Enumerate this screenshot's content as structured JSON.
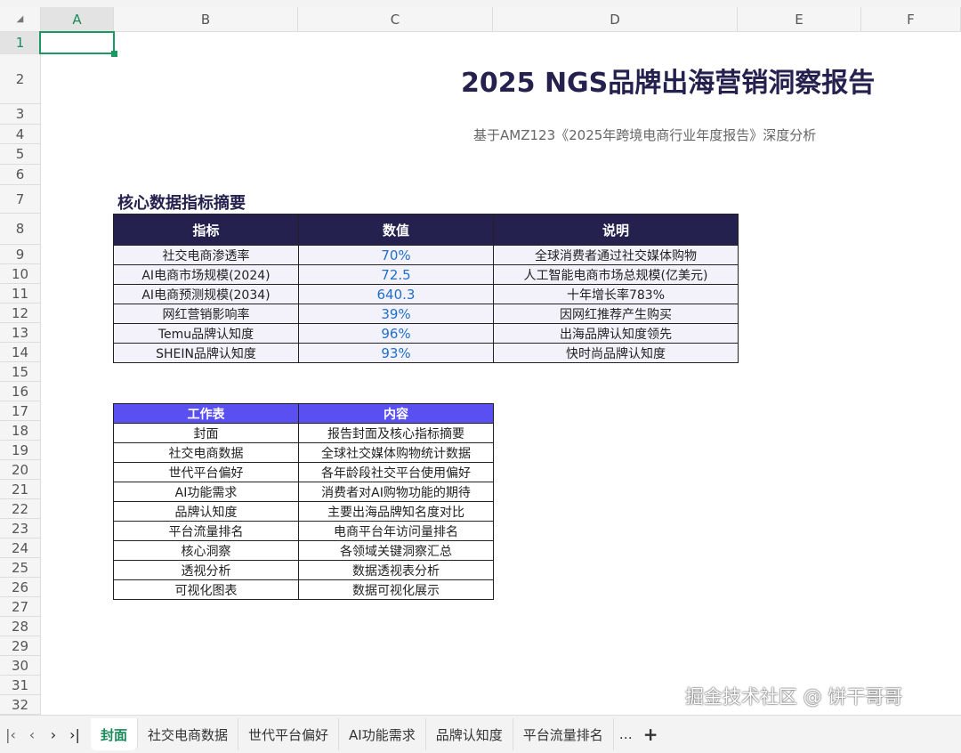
{
  "columns": [
    "A",
    "B",
    "C",
    "D",
    "E",
    "F"
  ],
  "rows": [
    "1",
    "2",
    "3",
    "4",
    "5",
    "6",
    "7",
    "8",
    "9",
    "10",
    "11",
    "12",
    "13",
    "14",
    "15",
    "16",
    "17",
    "18",
    "19",
    "20",
    "21",
    "22",
    "23",
    "24",
    "25",
    "26",
    "27",
    "28",
    "29",
    "30",
    "31",
    "32"
  ],
  "title": "2025 NGS品牌出海营销洞察报告",
  "subtitle": "基于AMZ123《2025年跨境电商行业年度报告》深度分析",
  "section_title": "核心数据指标摘要",
  "metrics": {
    "headers": [
      "指标",
      "数值",
      "说明"
    ],
    "rows": [
      [
        "社交电商渗透率",
        "70%",
        "全球消费者通过社交媒体购物"
      ],
      [
        "AI电商市场规模(2024)",
        "72.5",
        "人工智能电商市场总规模(亿美元)"
      ],
      [
        "AI电商预测规模(2034)",
        "640.3",
        "十年增长率783%"
      ],
      [
        "网红营销影响率",
        "39%",
        "因网红推荐产生购买"
      ],
      [
        "Temu品牌认知度",
        "96%",
        "出海品牌认知度领先"
      ],
      [
        "SHEIN品牌认知度",
        "93%",
        "快时尚品牌认知度"
      ]
    ]
  },
  "sheets_table": {
    "headers": [
      "工作表",
      "内容"
    ],
    "rows": [
      [
        "封面",
        "报告封面及核心指标摘要"
      ],
      [
        "社交电商数据",
        "全球社交媒体购物统计数据"
      ],
      [
        "世代平台偏好",
        "各年龄段社交平台使用偏好"
      ],
      [
        "AI功能需求",
        "消费者对AI购物功能的期待"
      ],
      [
        "品牌认知度",
        "主要出海品牌知名度对比"
      ],
      [
        "平台流量排名",
        "电商平台年访问量排名"
      ],
      [
        "核心洞察",
        "各领域关键洞察汇总"
      ],
      [
        "透视分析",
        "数据透视表分析"
      ],
      [
        "可视化图表",
        "数据可视化展示"
      ]
    ]
  },
  "tabs": [
    "封面",
    "社交电商数据",
    "世代平台偏好",
    "AI功能需求",
    "品牌认知度",
    "平台流量排名"
  ],
  "tabs_more": "…",
  "add_sheet": "+",
  "watermark": "掘金技术社区 @ 饼干哥哥",
  "colors": {
    "header_dark": "#24214f",
    "header_purple": "#5a4ff0",
    "value_blue": "#1f6fc8",
    "accent_green": "#1a9a60"
  }
}
